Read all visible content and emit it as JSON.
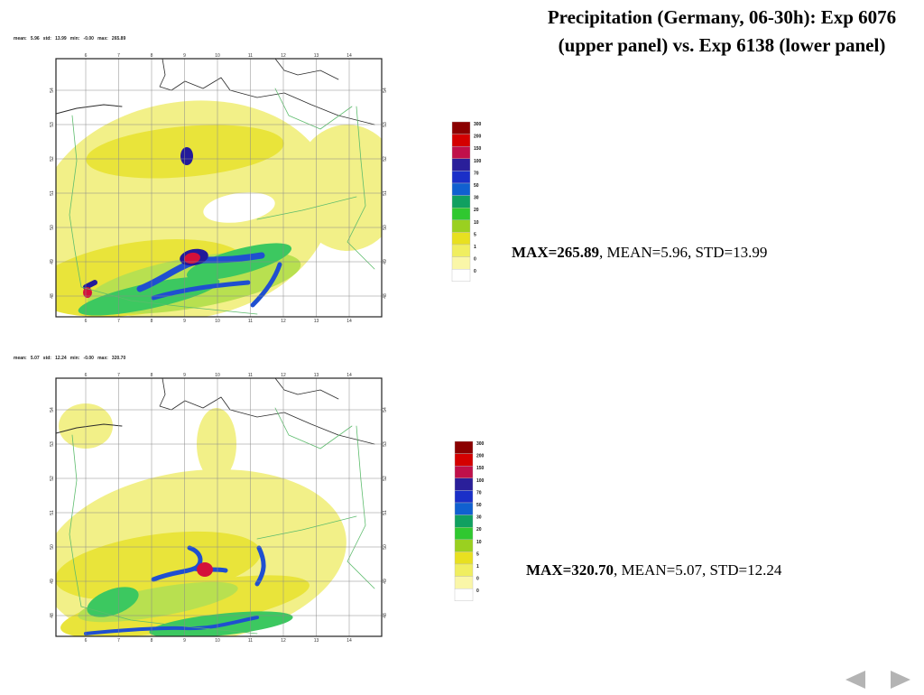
{
  "slide": {
    "title": "Precipitation (Germany, 06-30h): Exp 6076 (upper panel) vs. Exp 6138 (lower panel)"
  },
  "panels": [
    {
      "id": "upper",
      "header": "mean:   5.96   std:   13.99   min:   -0.00   max:   265.89",
      "stats": {
        "max_label": "MAX=265.89",
        "rest": ", MEAN=5.96, STD=13.99"
      },
      "lon_ticks": [
        "6",
        "7",
        "8",
        "9",
        "10",
        "11",
        "12",
        "13",
        "14"
      ],
      "lat_ticks": [
        "54",
        "53",
        "52",
        "51",
        "50",
        "49",
        "48"
      ]
    },
    {
      "id": "lower",
      "header": "mean:   5.07   std:   12.24   min:   -0.00   max:   320.70",
      "stats": {
        "max_label": "MAX=320.70",
        "rest": ", MEAN=5.07, STD=12.24"
      },
      "lon_ticks": [
        "6",
        "7",
        "8",
        "9",
        "10",
        "11",
        "12",
        "13",
        "14"
      ],
      "lat_ticks": [
        "54",
        "53",
        "52",
        "51",
        "50",
        "49",
        "48"
      ]
    }
  ],
  "legend": {
    "levels": [
      "300",
      "200",
      "150",
      "100",
      "70",
      "50",
      "30",
      "20",
      "10",
      "5",
      "1",
      "0",
      "0"
    ],
    "colors": [
      "#8b0000",
      "#d40000",
      "#c0104a",
      "#2a1f9a",
      "#1a2fc8",
      "#1060d0",
      "#10a060",
      "#30c830",
      "#9ad020",
      "#e8e020",
      "#f0ee60",
      "#faf6a8",
      "#ffffff"
    ]
  },
  "navigation": {
    "prev_icon": "triangle-left-icon",
    "next_icon": "triangle-right-icon"
  }
}
